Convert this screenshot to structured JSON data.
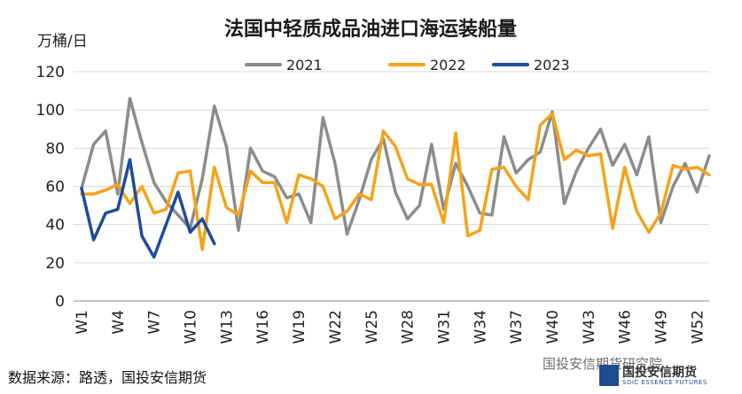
{
  "chart_data": {
    "type": "line",
    "title": "法国中轻质成品油进口海运装船量",
    "ylabel": "万桶/日",
    "xlabel": "",
    "ylim": [
      0,
      120
    ],
    "yticks": [
      0,
      20,
      40,
      60,
      80,
      100,
      120
    ],
    "x_tick_labels": [
      "W1",
      "W4",
      "W7",
      "W10",
      "W13",
      "W16",
      "W19",
      "W22",
      "W25",
      "W28",
      "W31",
      "W34",
      "W37",
      "W40",
      "W43",
      "W46",
      "W49",
      "W52"
    ],
    "grid": "horizontal",
    "legend_position": "top",
    "series": [
      {
        "name": "2021",
        "color": "#8c8c8c",
        "values": [
          59,
          82,
          89,
          56,
          106,
          83,
          62,
          52,
          45,
          38,
          64,
          102,
          81,
          37,
          80,
          68,
          65,
          54,
          56,
          41,
          96,
          72,
          35,
          53,
          74,
          85,
          57,
          43,
          50,
          82,
          48,
          72,
          60,
          46,
          45,
          86,
          67,
          74,
          78,
          99,
          51,
          68,
          80,
          90,
          71,
          82,
          66,
          86,
          41,
          60,
          72,
          57,
          76
        ]
      },
      {
        "name": "2022",
        "color": "#f5a31a",
        "values": [
          56,
          56,
          58,
          61,
          51,
          60,
          46,
          48,
          67,
          68,
          27,
          70,
          49,
          45,
          68,
          62,
          62,
          41,
          66,
          64,
          60,
          43,
          47,
          56,
          53,
          89,
          81,
          64,
          61,
          61,
          41,
          88,
          34,
          37,
          69,
          70,
          60,
          53,
          92,
          98,
          74,
          79,
          76,
          77,
          38,
          70,
          47,
          36,
          46,
          71,
          69,
          70,
          66
        ]
      },
      {
        "name": "2023",
        "color": "#1e4c9a",
        "values": [
          59,
          32,
          46,
          48,
          74,
          34,
          23,
          40,
          57,
          36,
          43,
          30
        ]
      }
    ]
  },
  "footer": {
    "source": "数据来源：路透，国投安信期货",
    "watermark": "国投安信期货研究院",
    "logo_cn": "国投安信期货",
    "logo_en": "SDIC ESSENCE FUTURES"
  }
}
